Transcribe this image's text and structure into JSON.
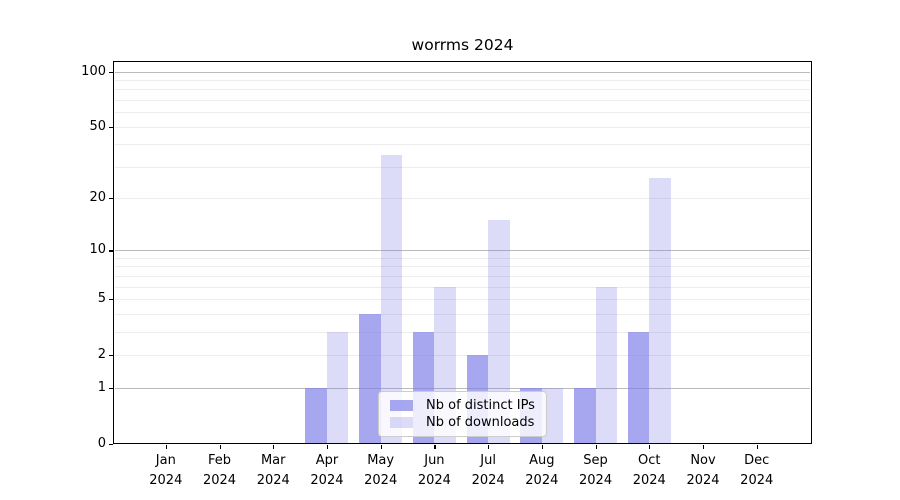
{
  "title": "worrms 2024",
  "chart_data": {
    "type": "bar",
    "title": "worrms 2024",
    "categories": [
      "Jan",
      "Feb",
      "Mar",
      "Apr",
      "May",
      "Jun",
      "Jul",
      "Aug",
      "Sep",
      "Oct",
      "Nov",
      "Dec"
    ],
    "x_year_line": "2024",
    "series": [
      {
        "name": "Nb of distinct IPs",
        "color": "rgba(124,124,233,0.67)",
        "values": [
          0,
          0,
          0,
          1,
          4,
          3,
          2,
          1,
          1,
          3,
          0,
          0
        ]
      },
      {
        "name": "Nb of downloads",
        "color": "rgba(124,124,233,0.27)",
        "values": [
          0,
          0,
          0,
          3,
          35,
          6,
          15,
          1,
          6,
          26,
          0,
          0
        ]
      }
    ],
    "yscale": "log1p",
    "ylim": [
      0,
      113
    ],
    "y_tick_values": [
      0,
      1,
      2,
      5,
      10,
      20,
      50,
      100
    ],
    "y_tick_labels": [
      "0",
      "1",
      "2",
      "5",
      "10",
      "20",
      "50",
      "100"
    ],
    "y_major_gridlines": [
      1,
      10,
      100
    ],
    "y_minor_gridlines": [
      2,
      3,
      4,
      5,
      6,
      7,
      8,
      9,
      20,
      30,
      40,
      50,
      60,
      70,
      80,
      90
    ],
    "grid": true,
    "legend_position": "lower center"
  },
  "colors": {
    "gridline_major": "#bbbbbb",
    "gridline_minor": "#ececec",
    "axis": "#000000",
    "background": "#ffffff"
  }
}
